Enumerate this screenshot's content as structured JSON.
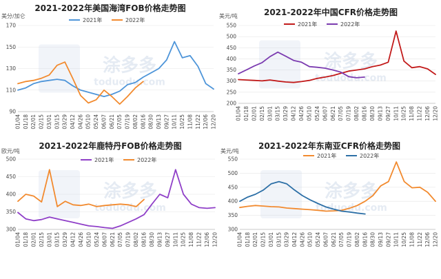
{
  "charts": [
    {
      "title": "2021-2022年美国海湾FOB价格走势图",
      "unit": "美分/加仑",
      "legend_pos": "top"
    },
    {
      "title": "2021-2022年中国CFR价格走势图",
      "unit": "美元/吨",
      "legend_pos": "top"
    },
    {
      "title": "2021-2022年鹿特丹FOB价格走势图",
      "unit": "欧元/吨",
      "legend_pos": "top"
    },
    {
      "title": "2021-2022年东南亚CFR价格走势图",
      "unit": "美元/吨",
      "legend_pos": "top"
    }
  ],
  "watermark": {
    "text": "涂多多",
    "sub": "toduodu.com"
  },
  "chart_data": [
    {
      "type": "line",
      "title": "2021-2022年美国海湾FOB价格走势图",
      "ylabel": "美分/加仑",
      "ylim": [
        90,
        170
      ],
      "yticks": [
        90,
        110,
        130,
        150,
        170
      ],
      "x_ticks": [
        "01/04",
        "01/18",
        "02/01",
        "02/15",
        "03/01",
        "03/15",
        "03/29",
        "04/12",
        "04/26",
        "05/10",
        "05/24",
        "06/07",
        "06/21",
        "07/05",
        "07/19",
        "08/02",
        "08/16",
        "08/30",
        "09/13",
        "09/27",
        "10/11",
        "10/25",
        "11/08",
        "11/22",
        "12/06",
        "12/20"
      ],
      "legend": "top",
      "series": [
        {
          "name": "2021年",
          "color": "#4e95d9",
          "x": [
            0,
            1,
            2,
            3,
            4,
            5,
            6,
            7,
            8,
            9,
            10,
            11,
            12,
            13,
            14,
            15,
            16,
            17,
            18,
            19,
            20,
            21,
            22,
            23,
            24,
            25
          ],
          "values": [
            110,
            112,
            116,
            118,
            119,
            120,
            119,
            114,
            110,
            108,
            106,
            104,
            106,
            109,
            115,
            117,
            122,
            126,
            130,
            138,
            155,
            140,
            142,
            132,
            116,
            111
          ]
        },
        {
          "name": "2022年",
          "color": "#f28a2e",
          "x": [
            0,
            1,
            2,
            3,
            4,
            5,
            6,
            7,
            8,
            9,
            10,
            11,
            12,
            13,
            14,
            15,
            16
          ],
          "values": [
            116,
            118,
            119,
            121,
            124,
            133,
            136,
            121,
            105,
            98,
            101,
            110,
            104,
            97,
            104,
            112,
            118
          ]
        }
      ]
    },
    {
      "type": "line",
      "title": "2021-2022年中国CFR价格走势图",
      "ylabel": "美元/吨",
      "ylim": [
        200,
        550
      ],
      "yticks": [
        200,
        250,
        300,
        350,
        400,
        450,
        500,
        550
      ],
      "x_ticks": [
        "01/04",
        "01/18",
        "02/01",
        "02/15",
        "03/01",
        "03/15",
        "03/29",
        "04/12",
        "04/26",
        "05/10",
        "05/24",
        "06/07",
        "06/21",
        "07/05",
        "07/19",
        "08/02",
        "08/16",
        "08/30",
        "09/13",
        "09/27",
        "10/11",
        "10/25",
        "11/08",
        "11/22",
        "12/06",
        "12/20"
      ],
      "legend": "top",
      "series": [
        {
          "name": "2021年",
          "color": "#c21a1a",
          "x": [
            0,
            1,
            2,
            3,
            4,
            5,
            6,
            7,
            8,
            9,
            10,
            11,
            12,
            13,
            14,
            15,
            16,
            17,
            18,
            19,
            20,
            21,
            22,
            23,
            24,
            25
          ],
          "values": [
            307,
            305,
            303,
            301,
            305,
            300,
            296,
            294,
            298,
            303,
            312,
            318,
            325,
            335,
            345,
            350,
            355,
            365,
            372,
            385,
            525,
            390,
            360,
            365,
            355,
            330
          ]
        },
        {
          "name": "2022年",
          "color": "#7b3bb0",
          "x": [
            0,
            1,
            2,
            3,
            4,
            5,
            6,
            7,
            8,
            9,
            10,
            11,
            12,
            13,
            14,
            15,
            16
          ],
          "values": [
            333,
            350,
            368,
            383,
            410,
            430,
            412,
            393,
            385,
            365,
            362,
            358,
            350,
            340,
            320,
            315,
            318
          ]
        }
      ]
    },
    {
      "type": "line",
      "title": "2021-2022年鹿特丹FOB价格走势图",
      "ylabel": "欧元/吨",
      "ylim": [
        300,
        500
      ],
      "yticks": [
        300,
        350,
        400,
        450,
        500
      ],
      "x_ticks": [
        "01/04",
        "01/18",
        "02/01",
        "02/15",
        "03/01",
        "03/15",
        "03/29",
        "04/12",
        "04/26",
        "05/10",
        "05/24",
        "06/07",
        "06/21",
        "07/05",
        "07/19",
        "08/02",
        "08/16",
        "08/30",
        "09/13",
        "09/27",
        "10/11",
        "10/25",
        "11/08",
        "11/22",
        "12/06",
        "12/20"
      ],
      "legend": "top",
      "series": [
        {
          "name": "2021年",
          "color": "#8f3fc8",
          "x": [
            0,
            1,
            2,
            3,
            4,
            5,
            6,
            7,
            8,
            9,
            10,
            11,
            12,
            13,
            14,
            15,
            16,
            17,
            18,
            19,
            20,
            21,
            22,
            23,
            24,
            25
          ],
          "values": [
            348,
            330,
            325,
            328,
            335,
            330,
            325,
            320,
            315,
            310,
            308,
            305,
            303,
            310,
            320,
            330,
            342,
            372,
            400,
            390,
            470,
            400,
            372,
            362,
            360,
            362
          ]
        },
        {
          "name": "2022年",
          "color": "#f28a2e",
          "x": [
            0,
            1,
            2,
            3,
            4,
            5,
            6,
            7,
            8,
            9,
            10,
            11,
            12,
            13,
            14,
            15,
            16
          ],
          "values": [
            380,
            400,
            395,
            378,
            470,
            365,
            380,
            370,
            368,
            372,
            365,
            368,
            370,
            372,
            370,
            365,
            385
          ]
        }
      ]
    },
    {
      "type": "line",
      "title": "2021-2022年东南亚CFR价格走势图",
      "ylabel": "美元/吨",
      "ylim": [
        300,
        550
      ],
      "yticks": [
        300,
        350,
        400,
        450,
        500,
        550
      ],
      "x_ticks": [
        "01/04",
        "01/18",
        "02/01",
        "02/15",
        "03/01",
        "03/15",
        "03/29",
        "04/12",
        "04/26",
        "05/10",
        "05/24",
        "06/07",
        "06/21",
        "07/05",
        "07/19",
        "08/02",
        "08/16",
        "08/30",
        "09/13",
        "09/27",
        "10/11",
        "10/25",
        "11/08",
        "11/22",
        "12/06",
        "12/20"
      ],
      "legend": "top",
      "series": [
        {
          "name": "2021年",
          "color": "#f28a2e",
          "x": [
            0,
            1,
            2,
            3,
            4,
            5,
            6,
            7,
            8,
            9,
            10,
            11,
            12,
            13,
            14,
            15,
            16,
            17,
            18,
            19,
            20,
            21,
            22,
            23,
            24,
            25
          ],
          "values": [
            378,
            382,
            385,
            383,
            381,
            380,
            376,
            374,
            372,
            370,
            368,
            365,
            366,
            368,
            375,
            385,
            400,
            420,
            455,
            470,
            540,
            470,
            448,
            450,
            432,
            400
          ]
        },
        {
          "name": "2022年",
          "color": "#2c6fa6",
          "x": [
            0,
            1,
            2,
            3,
            4,
            5,
            6,
            7,
            8,
            9,
            10,
            11,
            12,
            13,
            14,
            15,
            16
          ],
          "values": [
            400,
            415,
            425,
            440,
            462,
            470,
            462,
            440,
            420,
            405,
            392,
            380,
            372,
            365,
            362,
            358,
            355
          ]
        }
      ]
    }
  ]
}
